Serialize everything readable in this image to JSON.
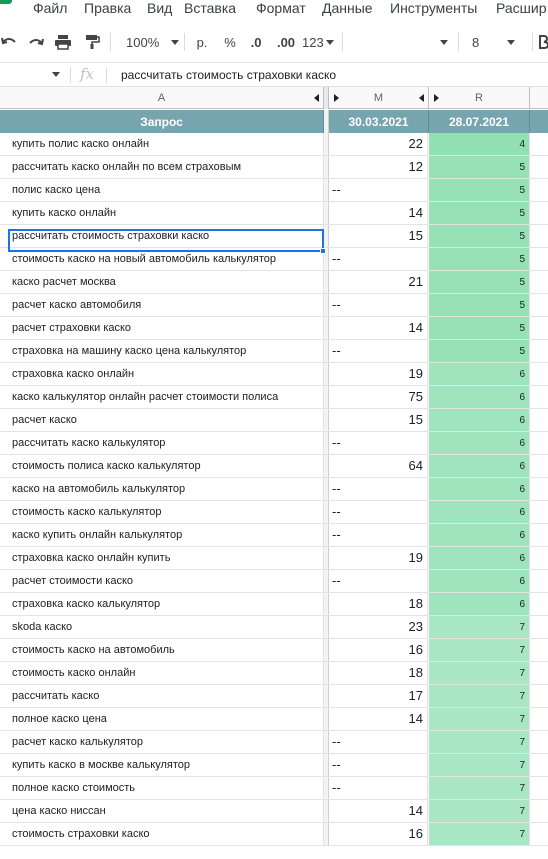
{
  "menu": {
    "items": [
      "Файл",
      "Правка",
      "Вид",
      "Вставка",
      "Формат",
      "Данные",
      "Инструменты",
      "Расшир"
    ]
  },
  "toolbar": {
    "zoom": "100%",
    "currency": "р.",
    "percent": "%",
    "decimal_decrease": ".0",
    "decimal_increase": ".00",
    "more_formats": "123",
    "font_size": "8"
  },
  "formula_bar": {
    "fx": "fx",
    "content": "рассчитать стоимость страховки каско"
  },
  "columns": {
    "a": "A",
    "m": "M",
    "r": "R"
  },
  "table": {
    "header": {
      "query": "Запрос",
      "date1": "30.03.2021",
      "date2": "28.07.2021"
    },
    "rows": [
      {
        "query": "купить полис каско онлайн",
        "m": "22",
        "r": "4"
      },
      {
        "query": "рассчитать каско онлайн по всем страховым",
        "m": "12",
        "r": "5"
      },
      {
        "query": "полис каско цена",
        "m": "--",
        "r": "5"
      },
      {
        "query": "купить каско онлайн",
        "m": "14",
        "r": "5"
      },
      {
        "query": "рассчитать стоимость страховки каско",
        "m": "15",
        "r": "5"
      },
      {
        "query": "стоимость каско на новый автомобиль калькулятор",
        "m": "--",
        "r": "5"
      },
      {
        "query": "каско расчет москва",
        "m": "21",
        "r": "5"
      },
      {
        "query": "расчет каско автомобиля",
        "m": "--",
        "r": "5"
      },
      {
        "query": "расчет страховки каско",
        "m": "14",
        "r": "5"
      },
      {
        "query": "страховка на машину каско цена калькулятор",
        "m": "--",
        "r": "5"
      },
      {
        "query": "страховка каско онлайн",
        "m": "19",
        "r": "6"
      },
      {
        "query": "каско калькулятор онлайн расчет стоимости полиса",
        "m": "75",
        "r": "6"
      },
      {
        "query": "расчет каско",
        "m": "15",
        "r": "6"
      },
      {
        "query": "рассчитать каско калькулятор",
        "m": "--",
        "r": "6"
      },
      {
        "query": "стоимость полиса каско калькулятор",
        "m": "64",
        "r": "6"
      },
      {
        "query": "каско на автомобиль калькулятор",
        "m": "--",
        "r": "6"
      },
      {
        "query": "стоимость каско калькулятор",
        "m": "--",
        "r": "6"
      },
      {
        "query": "каско купить онлайн калькулятор",
        "m": "--",
        "r": "6"
      },
      {
        "query": "страховка каско онлайн купить",
        "m": "19",
        "r": "6"
      },
      {
        "query": "расчет стоимости каско",
        "m": "--",
        "r": "6"
      },
      {
        "query": "страховка каско калькулятор",
        "m": "18",
        "r": "6"
      },
      {
        "query": "skoda каско",
        "m": "23",
        "r": "7"
      },
      {
        "query": "стоимость каско на автомобиль",
        "m": "16",
        "r": "7"
      },
      {
        "query": "стоимость каско онлайн",
        "m": "18",
        "r": "7"
      },
      {
        "query": "рассчитать каско",
        "m": "17",
        "r": "7"
      },
      {
        "query": "полное каско цена",
        "m": "14",
        "r": "7"
      },
      {
        "query": "расчет каско калькулятор",
        "m": "--",
        "r": "7"
      },
      {
        "query": "купить каско в москве калькулятор",
        "m": "--",
        "r": "7"
      },
      {
        "query": "полное каско стоимость",
        "m": "--",
        "r": "7"
      },
      {
        "query": "цена каско ниссан",
        "m": "14",
        "r": "7"
      },
      {
        "query": "стоимость страховки каско",
        "m": "16",
        "r": "7"
      }
    ]
  },
  "colors": {
    "header_bg": "#76a5af",
    "selection": "#1a73e8",
    "scale_4": "#91e0b3",
    "scale_7": "#a9e7c4"
  }
}
